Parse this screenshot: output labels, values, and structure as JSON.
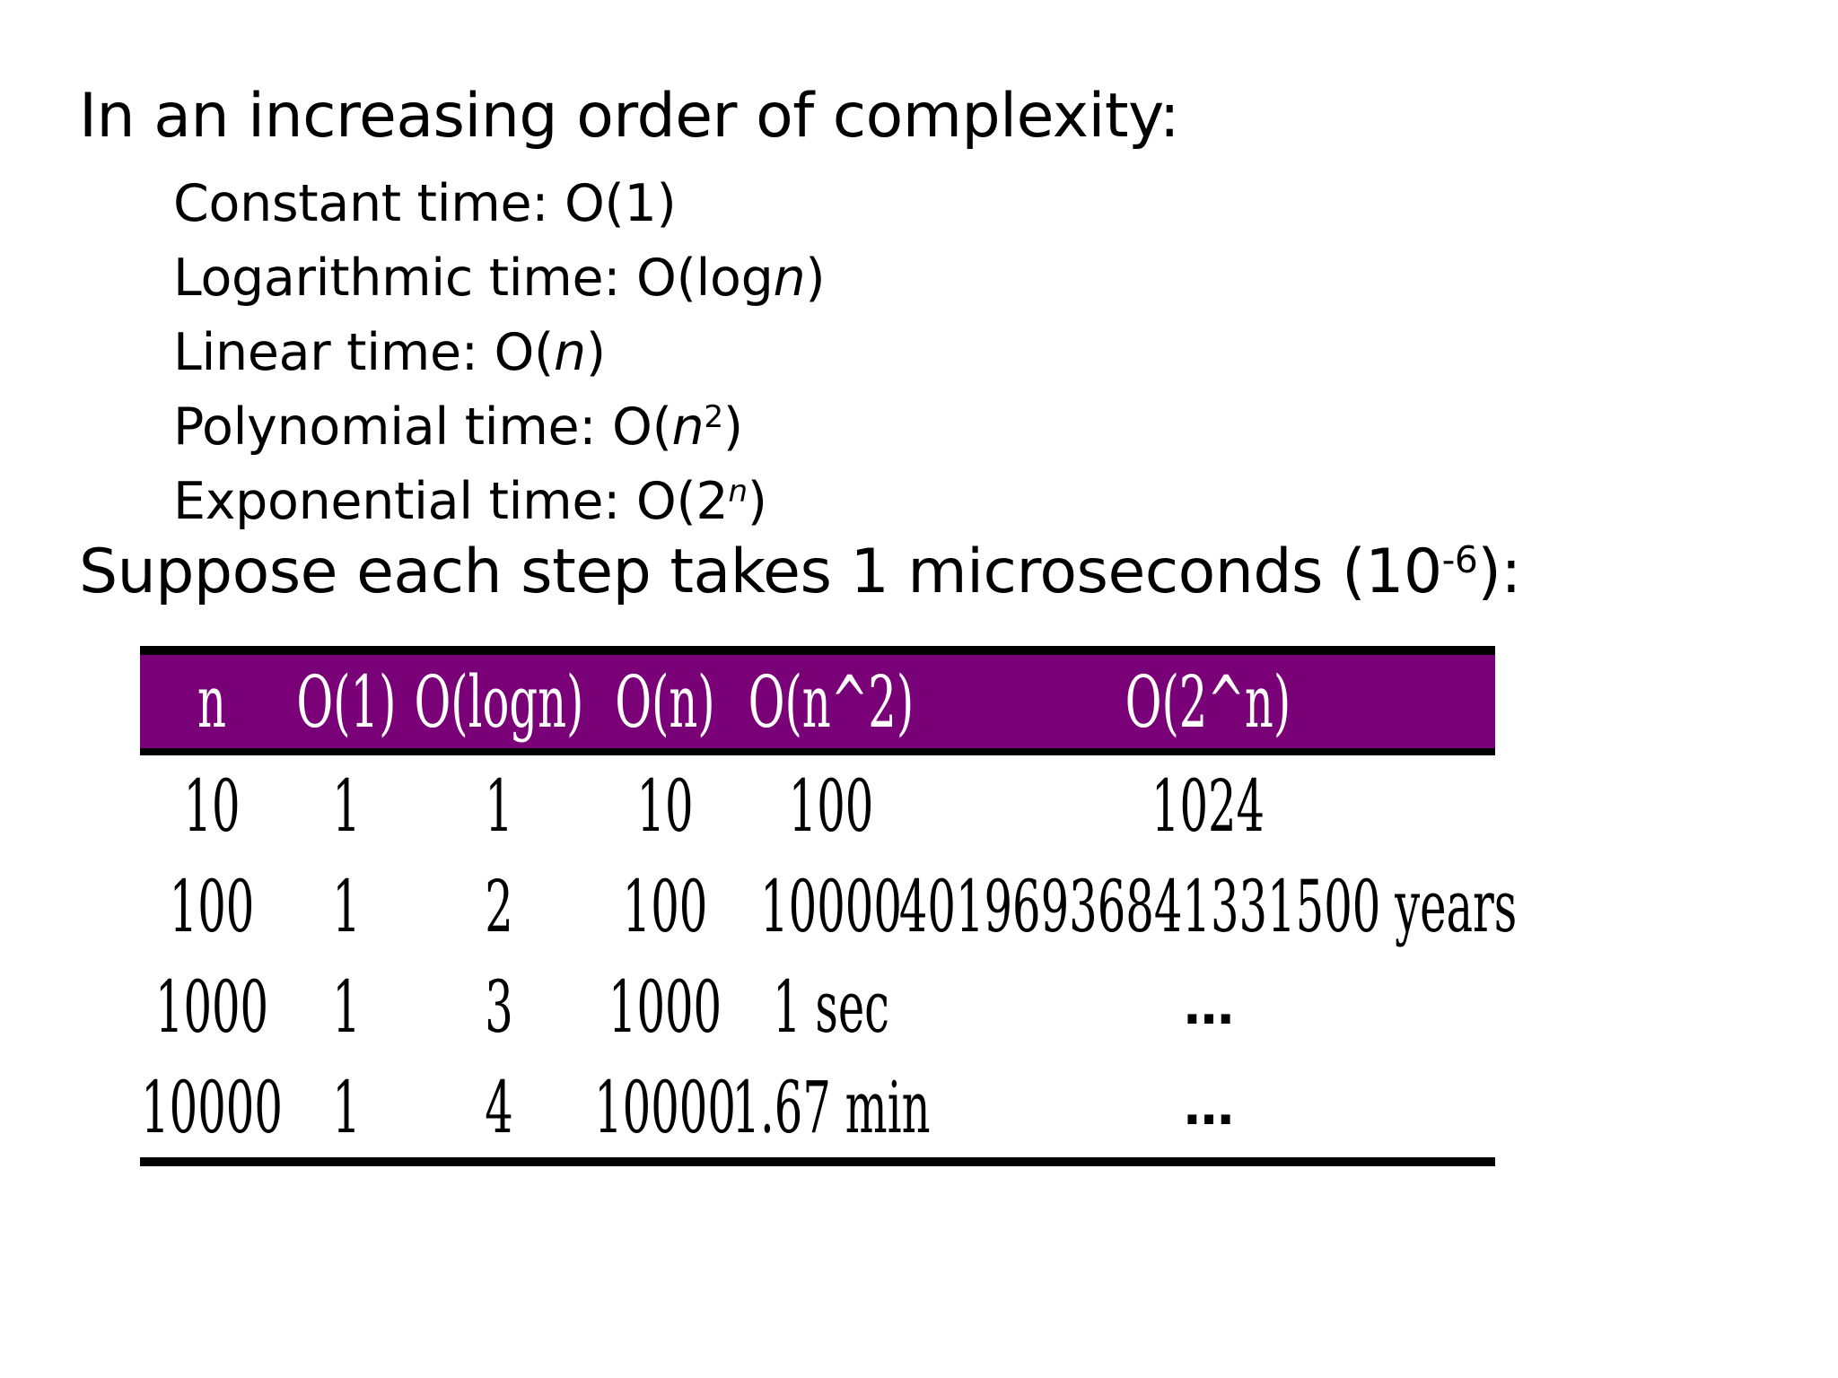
{
  "heading1": "In an increasing order of complexity:",
  "complexities": [
    {
      "label": "Constant time: O(1)"
    },
    {
      "prefix": "Logarithmic time: O(log",
      "var": "n",
      "suffix": ")"
    },
    {
      "prefix": "Linear time: O(",
      "var": "n",
      "suffix": ")"
    },
    {
      "prefix": "Polynomial time: O(",
      "var": "n",
      "sup": "2",
      "suffix": ")"
    },
    {
      "prefix": "Exponential time: O(2",
      "sup_var": "n",
      "suffix": ")"
    }
  ],
  "heading2": {
    "prefix": "Suppose each step takes 1 microseconds (10",
    "sup": "-6",
    "suffix": "):"
  },
  "table": {
    "colors": {
      "header_bg": "#7a0078",
      "header_text": "#ffffff",
      "rule": "#000000"
    },
    "headers": [
      "n",
      "O(1)",
      "O(logn)",
      "O(n)",
      "O(n^2)",
      "O(2^n)"
    ],
    "rows": [
      [
        "10",
        "1",
        "1",
        "10",
        "100",
        "1024"
      ],
      [
        "100",
        "1",
        "2",
        "100",
        "10000",
        "40196936841331500 years"
      ],
      [
        "1000",
        "1",
        "3",
        "1000",
        "1 sec",
        "…"
      ],
      [
        "10000",
        "1",
        "4",
        "10000",
        "1.67 min",
        "…"
      ]
    ]
  }
}
